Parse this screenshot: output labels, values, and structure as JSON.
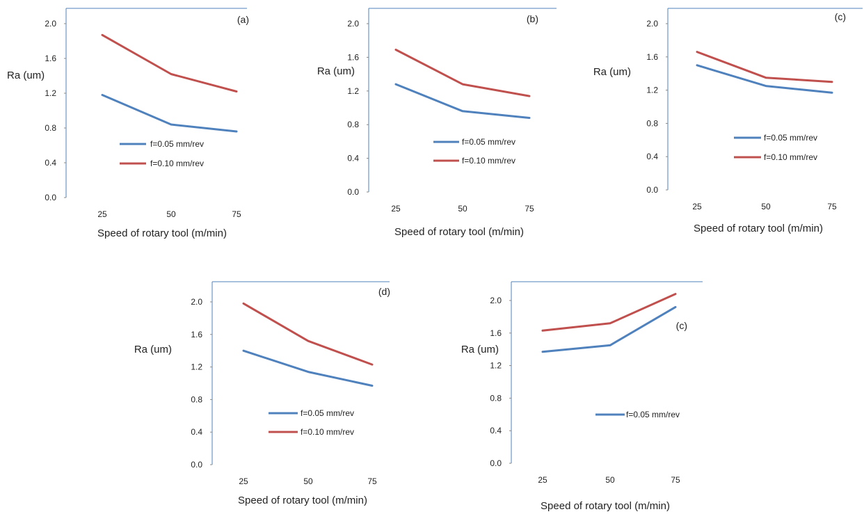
{
  "figure": {
    "colors": {
      "f005": "#4f81bd",
      "f010": "#c0504d",
      "axis": "#4f81bd"
    }
  },
  "chart_data": [
    {
      "type": "line",
      "tag": "(a)",
      "categories": [
        "25",
        "50",
        "75"
      ],
      "xlabel": "Speed of rotary tool (m/min)",
      "ylabel": "Ra (um)",
      "ylim": [
        0,
        2.0
      ],
      "yticks": [
        "0.0",
        "0.4",
        "0.8",
        "1.2",
        "1.6",
        "2.0"
      ],
      "grid": false,
      "legend_placement": "bottom-right",
      "series": [
        {
          "name": "f=0.05 mm/rev",
          "color": "#4f81bd",
          "values": [
            1.18,
            0.84,
            0.76
          ]
        },
        {
          "name": "f=0.10 mm/rev",
          "color": "#c0504d",
          "values": [
            1.87,
            1.42,
            1.22
          ]
        }
      ]
    },
    {
      "type": "line",
      "tag": "(b)",
      "categories": [
        "25",
        "50",
        "75"
      ],
      "xlabel": "Speed of rotary tool (m/min)",
      "ylabel": "Ra (um)",
      "ylim": [
        0,
        2.0
      ],
      "yticks": [
        "0.0",
        "0.4",
        "0.8",
        "1.2",
        "1.6",
        "2.0"
      ],
      "grid": false,
      "legend_placement": "bottom-right",
      "series": [
        {
          "name": "f=0.05 mm/rev",
          "color": "#4f81bd",
          "values": [
            1.28,
            0.96,
            0.88
          ]
        },
        {
          "name": "f=0.10 mm/rev",
          "color": "#c0504d",
          "values": [
            1.69,
            1.28,
            1.14
          ]
        }
      ]
    },
    {
      "type": "line",
      "tag": "(c)",
      "categories": [
        "25",
        "50",
        "75"
      ],
      "xlabel": "Speed of rotary tool (m/min)",
      "ylabel": "Ra (um)",
      "ylim": [
        0,
        2.0
      ],
      "yticks": [
        "0.0",
        "0.4",
        "0.8",
        "1.2",
        "1.6",
        "2.0"
      ],
      "grid": false,
      "legend_placement": "bottom-right",
      "series": [
        {
          "name": "f=0.05 mm/rev",
          "color": "#4f81bd",
          "values": [
            1.5,
            1.25,
            1.17
          ]
        },
        {
          "name": "f=0.10 mm/rev",
          "color": "#c0504d",
          "values": [
            1.66,
            1.35,
            1.3
          ]
        }
      ]
    },
    {
      "type": "line",
      "tag": "(d)",
      "categories": [
        "25",
        "50",
        "75"
      ],
      "xlabel": "Speed of rotary tool (m/min)",
      "ylabel": "Ra (um)",
      "ylim": [
        0,
        2.0
      ],
      "yticks": [
        "0.0",
        "0.4",
        "0.8",
        "1.2",
        "1.6",
        "2.0"
      ],
      "grid": false,
      "legend_placement": "bottom-right",
      "series": [
        {
          "name": "f=0.05 mm/rev",
          "color": "#4f81bd",
          "values": [
            1.4,
            1.14,
            0.97
          ]
        },
        {
          "name": "f=0.10 mm/rev",
          "color": "#c0504d",
          "values": [
            1.98,
            1.52,
            1.23
          ]
        }
      ]
    },
    {
      "type": "line",
      "tag": "(c)",
      "categories": [
        "25",
        "50",
        "75"
      ],
      "xlabel": "Speed of rotary tool (m/min)",
      "ylabel": "Ra (um)",
      "ylim": [
        0,
        2.0
      ],
      "yticks": [
        "0.0",
        "0.4",
        "0.8",
        "1.2",
        "1.6",
        "2.0"
      ],
      "grid": false,
      "legend_placement": "bottom-center",
      "series": [
        {
          "name": "f=0.05 mm/rev",
          "color": "#4f81bd",
          "values": [
            1.37,
            1.45,
            1.92
          ]
        },
        {
          "name": "",
          "color": "#c0504d",
          "values": [
            1.63,
            1.72,
            2.08
          ]
        }
      ]
    }
  ]
}
